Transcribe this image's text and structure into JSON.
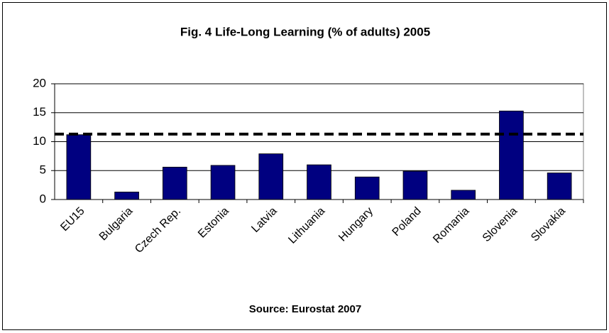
{
  "chart_data": {
    "type": "bar",
    "title": "Fig. 4 Life-Long Learning (% of adults) 2005",
    "source": "Source: Eurostat 2007",
    "categories": [
      "EU15",
      "Bulgaria",
      "Czech Rep.",
      "Estonia",
      "Latvia",
      "Lithuania",
      "Hungary",
      "Poland",
      "Romania",
      "Slovenia",
      "Slovakia"
    ],
    "values": [
      11.2,
      1.3,
      5.6,
      5.9,
      7.9,
      6.0,
      3.9,
      4.9,
      1.6,
      15.3,
      4.6
    ],
    "color": "#000080",
    "reference_line": 11.3,
    "ylim": [
      0,
      20
    ],
    "yticks": [
      0,
      5,
      10,
      15,
      20
    ],
    "grid": true
  }
}
